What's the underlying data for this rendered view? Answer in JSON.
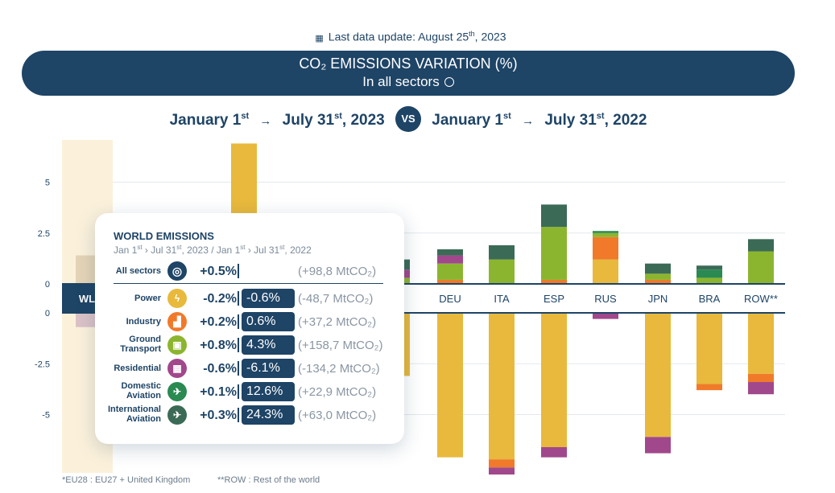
{
  "header": {
    "update_label": "Last data update: August 25",
    "update_sup": "th",
    "update_year": ", 2023",
    "title_line1": "CO₂ EMISSIONS VARIATION (%)",
    "title_line2": "In all sectors",
    "period": {
      "a_start": "January 1",
      "a_start_sup": "st",
      "a_end": "July 31",
      "a_end_sup": "st",
      "a_year": ", 2023",
      "vs": "VS",
      "b_start": "January 1",
      "b_start_sup": "st",
      "b_end": "July 31",
      "b_end_sup": "st",
      "b_year": ", 2022",
      "arrow": "→"
    }
  },
  "footnotes": {
    "eu": "*EU28 : EU27 + United Kingdom",
    "row": "**ROW : Rest of the world"
  },
  "colors": {
    "navy": "#1e4466",
    "power": "#e8b93c",
    "industry": "#f07a2a",
    "ground": "#8cb52f",
    "residential": "#a1488c",
    "domestic_aviation": "#2a8a52",
    "international_aviation": "#3b6b56",
    "highlight": "#fbf1db"
  },
  "tooltip": {
    "title": "WORLD EMISSIONS",
    "subtitle_a": "Jan 1",
    "subtitle_a_sup": "st",
    "subtitle_b": " › Jul 31",
    "subtitle_b_sup": "st",
    "subtitle_c": ", 2023 / Jan 1",
    "subtitle_c_sup": "st",
    "subtitle_d": " › Jul 31",
    "subtitle_d_sup": "st",
    "subtitle_e": ", 2022",
    "total": {
      "label": "All sectors",
      "icon": "globe-icon",
      "change": "+0.5%",
      "mtco2": "(+98,8 MtCO₂)"
    },
    "rows": [
      {
        "label": "Power",
        "icon": "lightning-icon",
        "glyph": "ϟ",
        "color": "#e8b93c",
        "change": "-0.2%",
        "pct": "-0.6%",
        "mtco2": "(-48,7 MtCO₂)"
      },
      {
        "label": "Industry",
        "icon": "factory-icon",
        "glyph": "▟",
        "color": "#f07a2a",
        "change": "+0.2%",
        "pct": "0.6%",
        "mtco2": "(+37,2 MtCO₂)"
      },
      {
        "label": "Ground Transport",
        "icon": "train-icon",
        "glyph": "▣",
        "color": "#8cb52f",
        "change": "+0.8%",
        "pct": "4.3%",
        "mtco2": "(+158,7 MtCO₂)"
      },
      {
        "label": "Residential",
        "icon": "building-icon",
        "glyph": "▦",
        "color": "#a1488c",
        "change": "-0.6%",
        "pct": "-6.1%",
        "mtco2": "(-134,2 MtCO₂)"
      },
      {
        "label": "Domestic Aviation",
        "icon": "plane-icon",
        "glyph": "✈",
        "color": "#2a8a52",
        "change": "+0.1%",
        "pct": "12.6%",
        "mtco2": "(+22,9 MtCO₂)"
      },
      {
        "label": "International Aviation",
        "icon": "plane-globe-icon",
        "glyph": "✈",
        "color": "#3b6b56",
        "change": "+0.3%",
        "pct": "24.3%",
        "mtco2": "(+63,0 MtCO₂)"
      }
    ]
  },
  "chart_data": {
    "type": "bar",
    "stacked": true,
    "ylim": [
      -7.8,
      6.8
    ],
    "yticks": [
      5,
      2.5,
      0,
      -2.5,
      -5
    ],
    "ytick_labels": [
      "5",
      "2.5",
      "0",
      "-2.5",
      "-5"
    ],
    "grid": true,
    "highlighted_category": "WLD",
    "categories": [
      "WLD",
      "",
      "",
      "",
      "",
      "",
      "DEU",
      "ITA",
      "ESP",
      "RUS",
      "JPN",
      "BRA",
      "ROW**"
    ],
    "category_labels_visible": [
      "WL",
      "",
      "",
      "",
      "",
      "A",
      "DEU",
      "ITA",
      "ESP",
      "RUS",
      "JPN",
      "BRA",
      "ROW**"
    ],
    "series": [
      {
        "sector": "Power",
        "color": "#e8b93c",
        "values": [
          null,
          3.3,
          null,
          6.9,
          null,
          -3.1,
          -7.1,
          -7.2,
          -6.6,
          1.2,
          -6.1,
          -3.5,
          -3.0
        ]
      },
      {
        "sector": "Industry",
        "color": "#f07a2a",
        "values": [
          null,
          null,
          null,
          null,
          null,
          null,
          0.2,
          -0.4,
          0.2,
          1.1,
          0.2,
          -0.3,
          -0.4
        ]
      },
      {
        "sector": "Ground Transport",
        "color": "#8cb52f",
        "values": [
          null,
          null,
          null,
          null,
          null,
          0.3,
          0.8,
          1.2,
          2.6,
          0.2,
          0.3,
          0.3,
          1.6
        ]
      },
      {
        "sector": "Residential",
        "color": "#a1488c",
        "values": [
          null,
          null,
          null,
          null,
          null,
          0.4,
          0.4,
          -0.7,
          -0.5,
          -0.3,
          -0.8,
          null,
          -0.6
        ]
      },
      {
        "sector": "Domestic Aviation",
        "color": "#2a8a52",
        "values": [
          null,
          null,
          null,
          null,
          null,
          null,
          null,
          null,
          null,
          0.1,
          null,
          0.4,
          null
        ]
      },
      {
        "sector": "International Aviation",
        "color": "#3b6b56",
        "values": [
          null,
          null,
          null,
          null,
          null,
          0.5,
          0.3,
          0.7,
          1.1,
          null,
          0.5,
          0.2,
          0.6
        ]
      }
    ]
  }
}
